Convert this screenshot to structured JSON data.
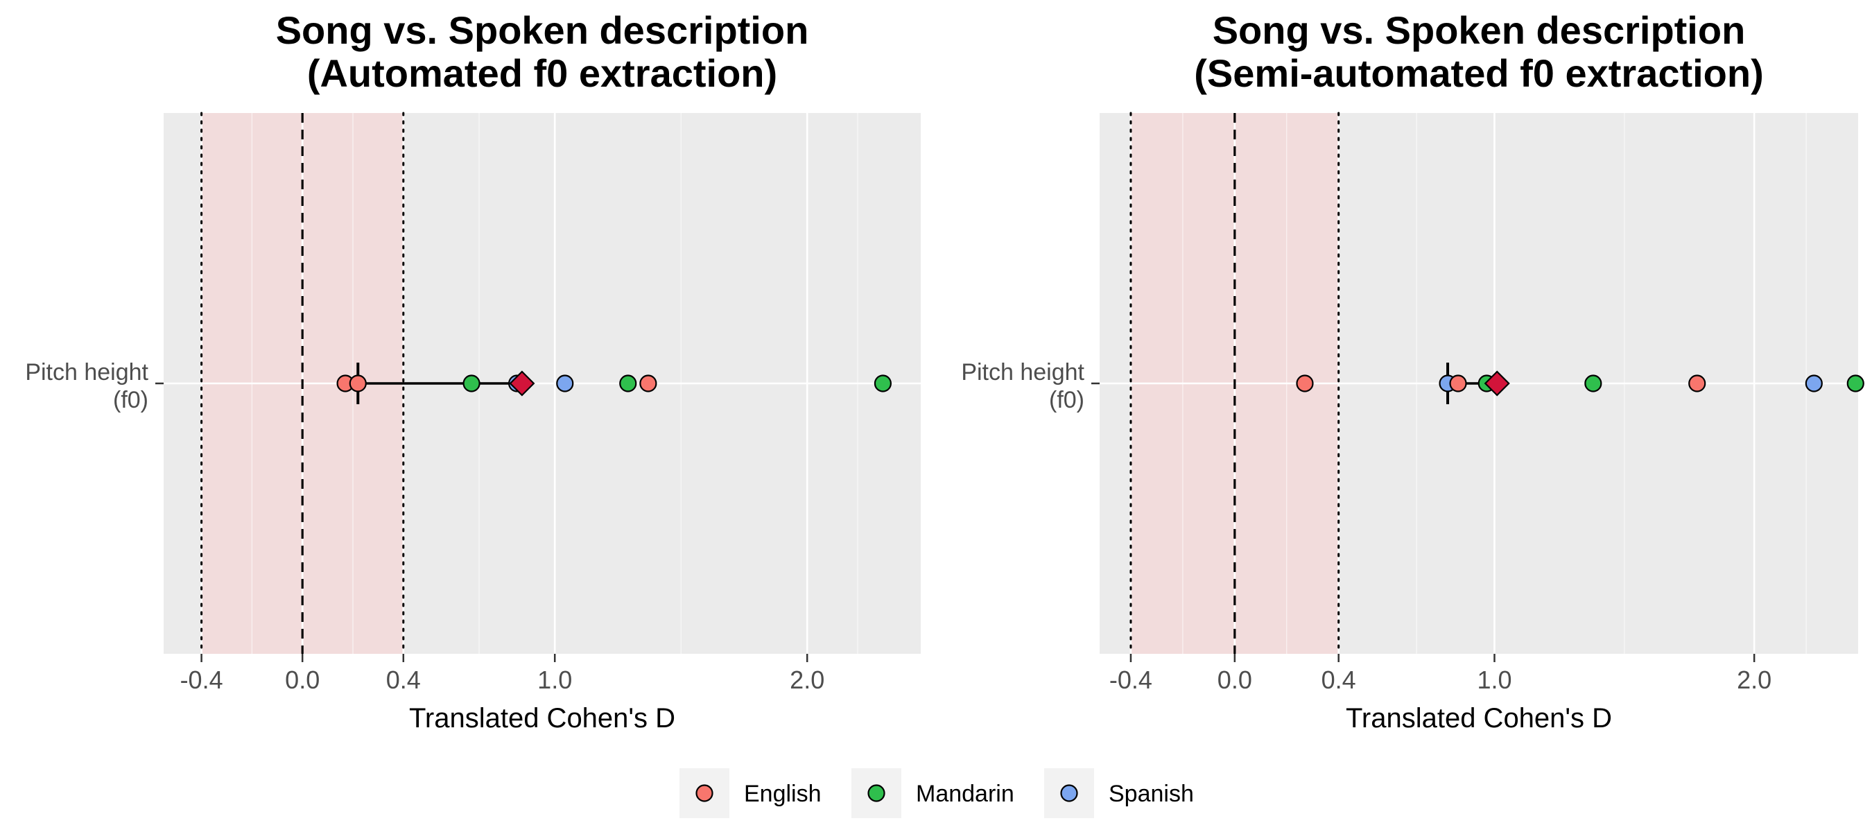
{
  "chart_data": [
    {
      "type": "scatter",
      "title": [
        "Song vs. Spoken description",
        "(Automated f0 extraction)"
      ],
      "xlabel": "Translated Cohen's D",
      "y_category": [
        "Pitch height",
        "(f0)"
      ],
      "xlim": [
        -0.55,
        2.45
      ],
      "x_ticks": [
        -0.4,
        0.0,
        0.4,
        1.0,
        2.0
      ],
      "x_tick_labels": [
        "-0.4",
        "0.0",
        "0.4",
        "1.0",
        "2.0"
      ],
      "x_minor_ticks": [
        -0.2,
        0.2,
        0.7,
        1.5,
        2.2
      ],
      "reference_lines": {
        "null": 0.0,
        "equivalence_bounds": [
          -0.4,
          0.4
        ]
      },
      "equivalence_region": [
        -0.4,
        0.4
      ],
      "points": [
        {
          "language": "English",
          "x": 0.17
        },
        {
          "language": "English",
          "x": 0.22
        },
        {
          "language": "Mandarin",
          "x": 0.67
        },
        {
          "language": "Spanish",
          "x": 0.85
        },
        {
          "language": "Spanish",
          "x": 1.04
        },
        {
          "language": "Mandarin",
          "x": 1.29
        },
        {
          "language": "English",
          "x": 1.37
        },
        {
          "language": "Mandarin",
          "x": 2.3
        }
      ],
      "estimate": 0.87,
      "interval": [
        0.22,
        0.87
      ]
    },
    {
      "type": "scatter",
      "title": [
        "Song vs. Spoken description",
        "(Semi-automated f0 extraction)"
      ],
      "xlabel": "Translated Cohen's D",
      "y_category": [
        "Pitch height",
        "(f0)"
      ],
      "xlim": [
        -0.52,
        2.4
      ],
      "x_ticks": [
        -0.4,
        0.0,
        0.4,
        1.0,
        2.0
      ],
      "x_tick_labels": [
        "-0.4",
        "0.0",
        "0.4",
        "1.0",
        "2.0"
      ],
      "x_minor_ticks": [
        -0.2,
        0.2,
        0.7,
        1.5,
        2.2
      ],
      "reference_lines": {
        "null": 0.0,
        "equivalence_bounds": [
          -0.4,
          0.4
        ]
      },
      "equivalence_region": [
        -0.4,
        0.4
      ],
      "points": [
        {
          "language": "English",
          "x": 0.27
        },
        {
          "language": "Spanish",
          "x": 0.82
        },
        {
          "language": "English",
          "x": 0.86
        },
        {
          "language": "Mandarin",
          "x": 0.97
        },
        {
          "language": "Mandarin",
          "x": 1.38
        },
        {
          "language": "English",
          "x": 1.78
        },
        {
          "language": "Spanish",
          "x": 2.23
        },
        {
          "language": "Mandarin",
          "x": 2.39
        }
      ],
      "estimate": 1.01,
      "interval": [
        0.82,
        1.01
      ]
    }
  ],
  "legend": {
    "position": "bottom",
    "entries": [
      {
        "label": "English",
        "color": "#f8766d"
      },
      {
        "label": "Mandarin",
        "color": "#2fbf4d"
      },
      {
        "label": "Spanish",
        "color": "#7ca6ef"
      }
    ]
  },
  "colors": {
    "panel_background": "#ebebeb",
    "equivalence_fill": "#f2dcdc",
    "grid_line": "#ffffff",
    "estimate_marker": "#d2143a"
  }
}
